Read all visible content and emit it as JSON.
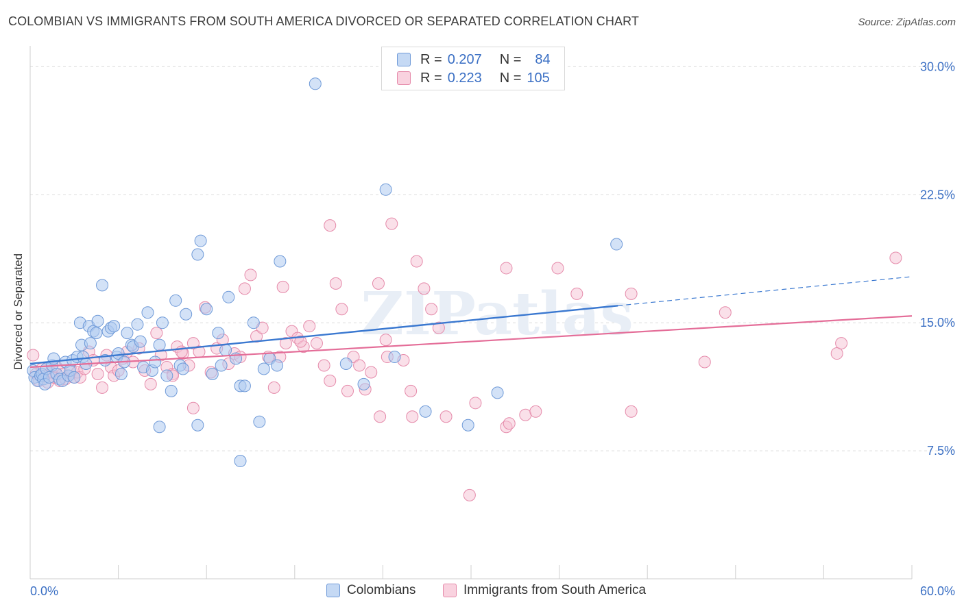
{
  "title": "COLOMBIAN VS IMMIGRANTS FROM SOUTH AMERICA DIVORCED OR SEPARATED CORRELATION CHART",
  "source": "Source: ZipAtlas.com",
  "watermark": "ZIPatlas",
  "legend": {
    "rows": [
      {
        "r_label": "R =",
        "r_value": "0.207",
        "n_label": "N =",
        "n_value": "84"
      },
      {
        "r_label": "R =",
        "r_value": "0.223",
        "n_label": "N =",
        "n_value": "105"
      }
    ]
  },
  "bottom_legend": [
    "Colombians",
    "Immigrants from South America"
  ],
  "colors": {
    "blue_fill": "#aecbf0",
    "blue_stroke": "#6f9ad8",
    "blue_line": "#3a78d0",
    "pink_fill": "#f6c2d3",
    "pink_stroke": "#e58aaa",
    "pink_line": "#e46d98",
    "tick_label": "#3a6fc4",
    "grid": "#dcdcdc"
  },
  "chart_data": {
    "type": "scatter",
    "title": "COLOMBIAN VS IMMIGRANTS FROM SOUTH AMERICA DIVORCED OR SEPARATED CORRELATION CHART",
    "xlabel": "",
    "ylabel": "Divorced or Separated",
    "xlim": [
      0,
      60
    ],
    "ylim": [
      0,
      31.5
    ],
    "x_tick_labels": [
      "0.0%",
      "60.0%"
    ],
    "y_ticks": [
      7.5,
      15.0,
      22.5,
      30.0
    ],
    "y_tick_labels": [
      "7.5%",
      "15.0%",
      "22.5%",
      "30.0%"
    ],
    "grid": "horizontal dashed",
    "legend_position": "top-center",
    "series": [
      {
        "name": "Colombians",
        "color": "#aecbf0",
        "trend": {
          "x": [
            0,
            40
          ],
          "y": [
            12.6,
            16.0
          ],
          "dashed_extension": {
            "x": [
              40,
              60
            ],
            "y": [
              16.0,
              17.7
            ]
          }
        },
        "points": [
          [
            0.2,
            12.2
          ],
          [
            0.3,
            11.8
          ],
          [
            0.5,
            11.6
          ],
          [
            0.7,
            11.9
          ],
          [
            0.8,
            12.0
          ],
          [
            0.9,
            11.7
          ],
          [
            1.0,
            11.4
          ],
          [
            1.1,
            12.3
          ],
          [
            1.3,
            11.8
          ],
          [
            1.5,
            12.5
          ],
          [
            1.6,
            12.9
          ],
          [
            1.8,
            12.0
          ],
          [
            2.0,
            11.7
          ],
          [
            2.2,
            11.6
          ],
          [
            2.4,
            12.7
          ],
          [
            2.6,
            11.9
          ],
          [
            2.7,
            12.2
          ],
          [
            2.9,
            12.8
          ],
          [
            3.0,
            11.8
          ],
          [
            3.2,
            13.0
          ],
          [
            3.4,
            15.0
          ],
          [
            3.5,
            13.7
          ],
          [
            3.6,
            13.0
          ],
          [
            3.8,
            12.6
          ],
          [
            4.0,
            14.8
          ],
          [
            4.1,
            13.8
          ],
          [
            4.3,
            14.5
          ],
          [
            4.5,
            14.4
          ],
          [
            4.6,
            15.1
          ],
          [
            4.9,
            17.2
          ],
          [
            5.1,
            12.8
          ],
          [
            5.3,
            14.5
          ],
          [
            5.5,
            14.7
          ],
          [
            5.7,
            14.8
          ],
          [
            5.9,
            13.0
          ],
          [
            6.0,
            13.2
          ],
          [
            6.2,
            12.0
          ],
          [
            6.4,
            12.7
          ],
          [
            6.6,
            14.4
          ],
          [
            6.9,
            13.7
          ],
          [
            7.0,
            13.6
          ],
          [
            7.3,
            14.9
          ],
          [
            7.5,
            13.9
          ],
          [
            7.7,
            12.4
          ],
          [
            8.0,
            15.6
          ],
          [
            8.3,
            12.2
          ],
          [
            8.5,
            12.7
          ],
          [
            8.8,
            13.7
          ],
          [
            9.0,
            15.0
          ],
          [
            9.3,
            11.9
          ],
          [
            9.6,
            11.0
          ],
          [
            9.9,
            16.3
          ],
          [
            10.2,
            12.5
          ],
          [
            10.4,
            12.3
          ],
          [
            10.6,
            15.5
          ],
          [
            11.4,
            19.0
          ],
          [
            11.6,
            19.8
          ],
          [
            12.0,
            15.8
          ],
          [
            12.4,
            12.0
          ],
          [
            12.8,
            14.4
          ],
          [
            13.0,
            12.5
          ],
          [
            13.3,
            13.4
          ],
          [
            13.5,
            16.5
          ],
          [
            14.0,
            12.9
          ],
          [
            14.3,
            11.3
          ],
          [
            14.6,
            11.3
          ],
          [
            15.2,
            15.0
          ],
          [
            15.9,
            12.3
          ],
          [
            16.3,
            12.9
          ],
          [
            16.8,
            12.5
          ],
          [
            17.0,
            18.6
          ],
          [
            19.4,
            29.0
          ],
          [
            21.5,
            12.6
          ],
          [
            22.7,
            11.4
          ],
          [
            24.2,
            22.8
          ],
          [
            24.8,
            13.0
          ],
          [
            8.8,
            8.9
          ],
          [
            11.4,
            9.0
          ],
          [
            15.6,
            9.2
          ],
          [
            14.3,
            6.9
          ],
          [
            26.9,
            9.8
          ],
          [
            29.8,
            9.0
          ],
          [
            31.8,
            10.9
          ],
          [
            39.9,
            19.6
          ]
        ]
      },
      {
        "name": "Immigrants from South America",
        "color": "#f6c2d3",
        "trend": {
          "x": [
            0,
            60
          ],
          "y": [
            12.4,
            15.4
          ]
        },
        "points": [
          [
            0.2,
            13.1
          ],
          [
            0.4,
            12.0
          ],
          [
            0.6,
            11.6
          ],
          [
            0.8,
            12.3
          ],
          [
            1.0,
            11.9
          ],
          [
            1.2,
            11.5
          ],
          [
            1.4,
            12.1
          ],
          [
            1.6,
            11.8
          ],
          [
            1.8,
            12.4
          ],
          [
            2.0,
            11.6
          ],
          [
            2.2,
            12.0
          ],
          [
            2.4,
            11.7
          ],
          [
            2.6,
            11.9
          ],
          [
            2.8,
            12.2
          ],
          [
            3.0,
            11.8
          ],
          [
            3.2,
            12.1
          ],
          [
            3.4,
            11.8
          ],
          [
            3.7,
            12.3
          ],
          [
            4.0,
            13.3
          ],
          [
            4.3,
            12.8
          ],
          [
            4.6,
            12.0
          ],
          [
            4.9,
            11.2
          ],
          [
            5.2,
            13.1
          ],
          [
            5.5,
            12.4
          ],
          [
            5.7,
            11.9
          ],
          [
            6.0,
            12.2
          ],
          [
            6.3,
            12.9
          ],
          [
            6.6,
            13.3
          ],
          [
            7.0,
            12.7
          ],
          [
            7.4,
            13.5
          ],
          [
            7.8,
            12.2
          ],
          [
            8.2,
            11.4
          ],
          [
            8.6,
            14.4
          ],
          [
            8.9,
            13.1
          ],
          [
            9.3,
            12.4
          ],
          [
            9.7,
            12.0
          ],
          [
            10.0,
            13.6
          ],
          [
            10.4,
            13.2
          ],
          [
            10.8,
            12.5
          ],
          [
            11.1,
            13.8
          ],
          [
            11.5,
            13.3
          ],
          [
            11.9,
            15.9
          ],
          [
            12.3,
            12.1
          ],
          [
            12.7,
            13.5
          ],
          [
            13.1,
            14.0
          ],
          [
            13.5,
            12.6
          ],
          [
            13.9,
            13.2
          ],
          [
            14.3,
            13.0
          ],
          [
            14.6,
            17.0
          ],
          [
            15.0,
            17.8
          ],
          [
            15.4,
            14.2
          ],
          [
            15.8,
            14.7
          ],
          [
            16.2,
            13.0
          ],
          [
            16.6,
            11.2
          ],
          [
            17.0,
            13.0
          ],
          [
            17.4,
            13.8
          ],
          [
            17.8,
            14.5
          ],
          [
            18.2,
            14.1
          ],
          [
            18.6,
            13.6
          ],
          [
            19.0,
            14.8
          ],
          [
            19.5,
            13.8
          ],
          [
            20.0,
            12.5
          ],
          [
            20.4,
            11.6
          ],
          [
            20.8,
            17.3
          ],
          [
            21.2,
            15.8
          ],
          [
            21.6,
            11.0
          ],
          [
            22.0,
            13.0
          ],
          [
            22.4,
            12.5
          ],
          [
            22.8,
            11.1
          ],
          [
            23.2,
            12.1
          ],
          [
            23.7,
            17.3
          ],
          [
            24.2,
            14.0
          ],
          [
            24.6,
            20.8
          ],
          [
            25.4,
            12.8
          ],
          [
            25.9,
            11.0
          ],
          [
            26.3,
            18.6
          ],
          [
            26.8,
            17.0
          ],
          [
            27.3,
            15.8
          ],
          [
            27.8,
            14.7
          ],
          [
            11.1,
            10.0
          ],
          [
            10.3,
            13.3
          ],
          [
            17.2,
            17.1
          ],
          [
            20.4,
            20.7
          ],
          [
            18.4,
            13.9
          ],
          [
            24.3,
            13.0
          ],
          [
            23.8,
            9.5
          ],
          [
            26.0,
            9.5
          ],
          [
            28.3,
            9.5
          ],
          [
            30.3,
            10.3
          ],
          [
            32.4,
            8.9
          ],
          [
            32.6,
            9.1
          ],
          [
            33.7,
            9.6
          ],
          [
            34.4,
            9.8
          ],
          [
            35.9,
            18.2
          ],
          [
            40.9,
            9.8
          ],
          [
            40.9,
            16.7
          ],
          [
            45.9,
            12.7
          ],
          [
            47.3,
            15.6
          ],
          [
            54.9,
            13.2
          ],
          [
            55.2,
            13.8
          ],
          [
            29.9,
            4.9
          ],
          [
            32.4,
            18.2
          ],
          [
            37.2,
            16.7
          ],
          [
            58.9,
            18.8
          ],
          [
            9.7,
            11.9
          ]
        ]
      }
    ]
  }
}
